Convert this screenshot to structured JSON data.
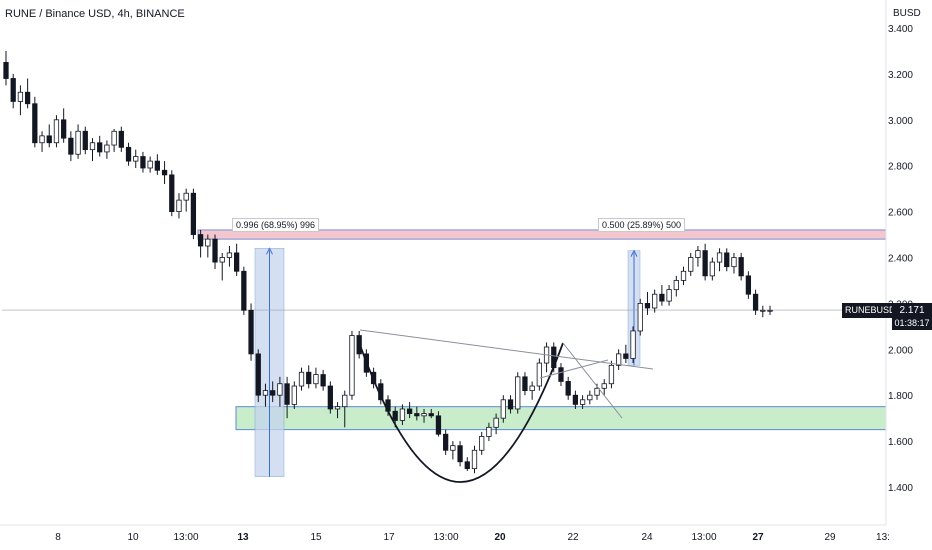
{
  "header": {
    "title": "RUNE / Binance USD, 4h, BINANCE",
    "currency": "BUSD"
  },
  "symbol_tag": {
    "symbol": "RUNEBUSD",
    "price": "2.171",
    "countdown": "01:38:17"
  },
  "annotations": [
    {
      "label": "0.996 (68.95%) 996"
    },
    {
      "label": "0.500 (25.89%) 500"
    }
  ],
  "colors": {
    "candle_up": "#ffffff",
    "candle_down": "#131722",
    "resistance_zone": "#f4c7cf",
    "support_zone": "#c9eccb",
    "measure_fill": "#c6d5ee"
  },
  "chart_data": {
    "type": "candlestick",
    "title": "RUNE / Binance USD, 4h, BINANCE",
    "ylabel": "BUSD",
    "ylim": [
      1.3,
      3.45
    ],
    "y_ticks": [
      "3.400",
      "3.200",
      "3.000",
      "2.800",
      "2.600",
      "2.400",
      "2.200",
      "2.000",
      "1.800",
      "1.600",
      "1.400"
    ],
    "x_ticks": [
      "8",
      "10",
      "13:00",
      "13",
      "15",
      "17",
      "13:00",
      "20",
      "22",
      "24",
      "13:00",
      "27",
      "29",
      "13:"
    ],
    "last_price": 2.171,
    "zones": [
      {
        "name": "resistance",
        "low": 2.48,
        "high": 2.52
      },
      {
        "name": "support",
        "low": 1.65,
        "high": 1.75
      }
    ],
    "measures": [
      {
        "label": "0.996 (68.95%) 996",
        "from": 1.445,
        "to": 2.44
      },
      {
        "label": "0.500 (25.89%) 500",
        "from": 1.93,
        "to": 2.43
      }
    ],
    "ohlc": [
      [
        3.25,
        3.3,
        3.15,
        3.18
      ],
      [
        3.18,
        3.2,
        3.05,
        3.08
      ],
      [
        3.08,
        3.15,
        3.02,
        3.12
      ],
      [
        3.12,
        3.18,
        3.05,
        3.07
      ],
      [
        3.07,
        3.1,
        2.88,
        2.9
      ],
      [
        2.9,
        2.95,
        2.86,
        2.93
      ],
      [
        2.93,
        2.98,
        2.88,
        2.9
      ],
      [
        2.9,
        3.02,
        2.88,
        3.0
      ],
      [
        3.0,
        3.05,
        2.9,
        2.92
      ],
      [
        2.92,
        2.95,
        2.82,
        2.85
      ],
      [
        2.85,
        2.98,
        2.83,
        2.95
      ],
      [
        2.95,
        2.97,
        2.85,
        2.87
      ],
      [
        2.87,
        2.92,
        2.82,
        2.9
      ],
      [
        2.9,
        2.93,
        2.84,
        2.86
      ],
      [
        2.86,
        2.91,
        2.83,
        2.89
      ],
      [
        2.89,
        2.96,
        2.86,
        2.95
      ],
      [
        2.95,
        2.97,
        2.86,
        2.88
      ],
      [
        2.88,
        2.9,
        2.8,
        2.82
      ],
      [
        2.82,
        2.87,
        2.79,
        2.84
      ],
      [
        2.84,
        2.86,
        2.77,
        2.79
      ],
      [
        2.79,
        2.84,
        2.77,
        2.82
      ],
      [
        2.82,
        2.85,
        2.76,
        2.78
      ],
      [
        2.78,
        2.82,
        2.72,
        2.76
      ],
      [
        2.76,
        2.78,
        2.58,
        2.6
      ],
      [
        2.6,
        2.68,
        2.57,
        2.65
      ],
      [
        2.65,
        2.7,
        2.6,
        2.68
      ],
      [
        2.68,
        2.7,
        2.48,
        2.5
      ],
      [
        2.5,
        2.52,
        2.4,
        2.45
      ],
      [
        2.45,
        2.5,
        2.4,
        2.48
      ],
      [
        2.48,
        2.5,
        2.35,
        2.38
      ],
      [
        2.38,
        2.42,
        2.3,
        2.4
      ],
      [
        2.4,
        2.45,
        2.36,
        2.42
      ],
      [
        2.42,
        2.46,
        2.32,
        2.34
      ],
      [
        2.34,
        2.36,
        2.15,
        2.17
      ],
      [
        2.17,
        2.2,
        1.95,
        1.98
      ],
      [
        1.98,
        2.0,
        1.77,
        1.8
      ],
      [
        1.8,
        1.85,
        1.75,
        1.82
      ],
      [
        1.82,
        1.86,
        1.77,
        1.8
      ],
      [
        1.8,
        1.88,
        1.75,
        1.85
      ],
      [
        1.85,
        1.88,
        1.7,
        1.76
      ],
      [
        1.76,
        1.86,
        1.74,
        1.84
      ],
      [
        1.84,
        1.92,
        1.82,
        1.9
      ],
      [
        1.9,
        1.93,
        1.83,
        1.85
      ],
      [
        1.85,
        1.92,
        1.83,
        1.89
      ],
      [
        1.89,
        1.91,
        1.82,
        1.84
      ],
      [
        1.84,
        1.86,
        1.72,
        1.74
      ],
      [
        1.74,
        1.77,
        1.7,
        1.75
      ],
      [
        1.75,
        1.82,
        1.66,
        1.8
      ],
      [
        1.8,
        2.08,
        1.78,
        2.06
      ],
      [
        2.06,
        2.08,
        1.96,
        1.98
      ],
      [
        1.98,
        2.0,
        1.88,
        1.9
      ],
      [
        1.9,
        1.92,
        1.83,
        1.85
      ],
      [
        1.85,
        1.87,
        1.76,
        1.78
      ],
      [
        1.78,
        1.8,
        1.71,
        1.73
      ],
      [
        1.73,
        1.75,
        1.66,
        1.69
      ],
      [
        1.69,
        1.76,
        1.67,
        1.74
      ],
      [
        1.74,
        1.77,
        1.7,
        1.72
      ],
      [
        1.72,
        1.75,
        1.69,
        1.71
      ],
      [
        1.71,
        1.74,
        1.68,
        1.72
      ],
      [
        1.72,
        1.74,
        1.7,
        1.71
      ],
      [
        1.71,
        1.73,
        1.62,
        1.63
      ],
      [
        1.63,
        1.65,
        1.54,
        1.56
      ],
      [
        1.56,
        1.6,
        1.52,
        1.58
      ],
      [
        1.58,
        1.6,
        1.49,
        1.51
      ],
      [
        1.51,
        1.53,
        1.47,
        1.48
      ],
      [
        1.48,
        1.58,
        1.46,
        1.56
      ],
      [
        1.56,
        1.64,
        1.54,
        1.62
      ],
      [
        1.62,
        1.68,
        1.6,
        1.66
      ],
      [
        1.66,
        1.72,
        1.63,
        1.7
      ],
      [
        1.7,
        1.8,
        1.68,
        1.78
      ],
      [
        1.78,
        1.8,
        1.72,
        1.74
      ],
      [
        1.74,
        1.9,
        1.72,
        1.88
      ],
      [
        1.88,
        1.9,
        1.8,
        1.82
      ],
      [
        1.82,
        1.86,
        1.78,
        1.84
      ],
      [
        1.84,
        1.96,
        1.82,
        1.94
      ],
      [
        1.94,
        2.03,
        1.9,
        2.01
      ],
      [
        2.01,
        2.03,
        1.9,
        1.92
      ],
      [
        1.92,
        1.94,
        1.84,
        1.86
      ],
      [
        1.86,
        1.88,
        1.78,
        1.8
      ],
      [
        1.8,
        1.82,
        1.74,
        1.76
      ],
      [
        1.76,
        1.8,
        1.74,
        1.78
      ],
      [
        1.78,
        1.82,
        1.76,
        1.8
      ],
      [
        1.8,
        1.85,
        1.78,
        1.83
      ],
      [
        1.83,
        1.87,
        1.8,
        1.85
      ],
      [
        1.85,
        1.95,
        1.83,
        1.93
      ],
      [
        1.93,
        2.0,
        1.91,
        1.98
      ],
      [
        1.98,
        2.02,
        1.94,
        1.96
      ],
      [
        1.96,
        2.1,
        1.94,
        2.08
      ],
      [
        2.08,
        2.22,
        2.06,
        2.2
      ],
      [
        2.2,
        2.25,
        2.15,
        2.18
      ],
      [
        2.18,
        2.26,
        2.16,
        2.24
      ],
      [
        2.24,
        2.28,
        2.19,
        2.21
      ],
      [
        2.21,
        2.28,
        2.19,
        2.26
      ],
      [
        2.26,
        2.32,
        2.23,
        2.3
      ],
      [
        2.3,
        2.36,
        2.28,
        2.34
      ],
      [
        2.34,
        2.42,
        2.32,
        2.4
      ],
      [
        2.4,
        2.45,
        2.36,
        2.43
      ],
      [
        2.43,
        2.46,
        2.3,
        2.32
      ],
      [
        2.32,
        2.4,
        2.3,
        2.38
      ],
      [
        2.38,
        2.44,
        2.34,
        2.42
      ],
      [
        2.42,
        2.44,
        2.34,
        2.36
      ],
      [
        2.36,
        2.42,
        2.33,
        2.4
      ],
      [
        2.4,
        2.42,
        2.3,
        2.32
      ],
      [
        2.32,
        2.34,
        2.22,
        2.24
      ],
      [
        2.24,
        2.26,
        2.15,
        2.17
      ],
      [
        2.17,
        2.19,
        2.14,
        2.17
      ],
      [
        2.17,
        2.19,
        2.15,
        2.17
      ]
    ]
  }
}
